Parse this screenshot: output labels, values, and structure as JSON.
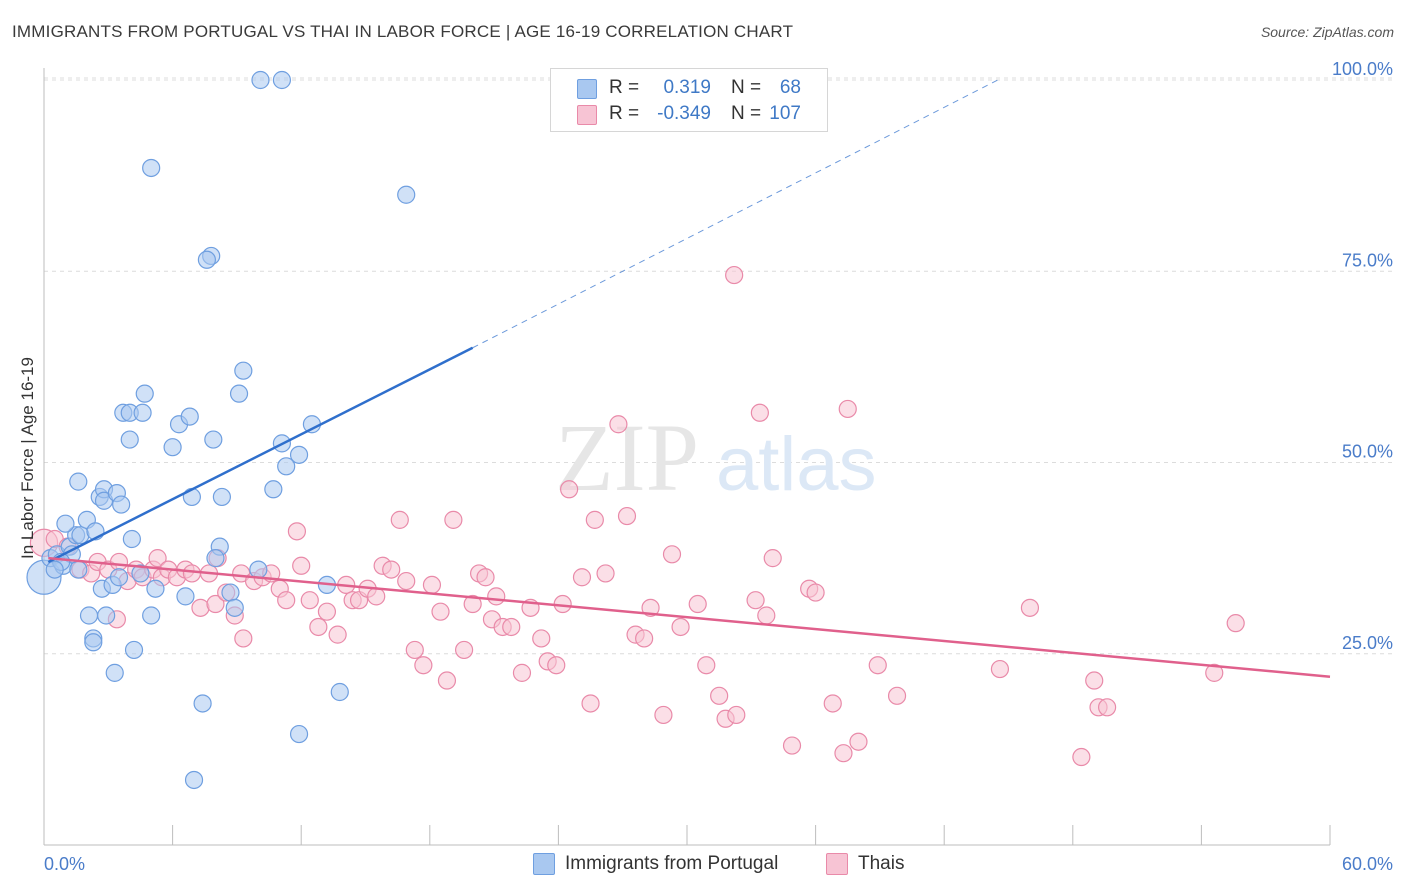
{
  "title": "IMMIGRANTS FROM PORTUGAL VS THAI IN LABOR FORCE | AGE 16-19 CORRELATION CHART",
  "source": "Source: ZipAtlas.com",
  "watermark": {
    "zip": "ZIP",
    "atlas": "atlas"
  },
  "legend_stats": {
    "r_label": "R =",
    "n_label": "N =",
    "rows": [
      {
        "r": "0.319",
        "n": "68",
        "color": "#a9c8f0",
        "border": "#6f9fe0"
      },
      {
        "r": "-0.349",
        "n": "107",
        "color": "#f7c4d4",
        "border": "#e98aa9"
      }
    ]
  },
  "bottom_legend": [
    {
      "label": "Immigrants from Portugal",
      "color": "#a9c8f0",
      "border": "#6f9fe0"
    },
    {
      "label": "Thais",
      "color": "#f7c4d4",
      "border": "#e98aa9"
    }
  ],
  "chart_data": {
    "type": "scatter",
    "title": "IMMIGRANTS FROM PORTUGAL VS THAI IN LABOR FORCE | AGE 16-19 CORRELATION CHART",
    "xlabel": "",
    "ylabel": "In Labor Force | Age 16-19",
    "xlim": [
      0,
      60
    ],
    "ylim": [
      0,
      103
    ],
    "x_tick_labels": [
      "0.0%",
      "60.0%"
    ],
    "y_ticks": [
      25,
      50,
      75,
      100
    ],
    "y_tick_labels": [
      "25.0%",
      "50.0%",
      "75.0%",
      "100.0%"
    ],
    "grid": true,
    "legend_placement": "bottom-center",
    "series": [
      {
        "name": "Immigrants from Portugal",
        "color": "#a9c8f0",
        "stroke": "#6f9fe0",
        "trend": {
          "x": [
            0.2,
            20
          ],
          "y": [
            37.0,
            65.0
          ],
          "dashed_to": [
            44.5,
            100
          ],
          "color": "#2f6fcc"
        },
        "points": [
          [
            0.0,
            35.0,
            20
          ],
          [
            0.3,
            37.5,
            10
          ],
          [
            0.6,
            38.0,
            10
          ],
          [
            0.9,
            36.5,
            10
          ],
          [
            1.2,
            39.0,
            10
          ],
          [
            1.5,
            40.5,
            10
          ],
          [
            1.0,
            42.0,
            10
          ],
          [
            1.6,
            36.0,
            10
          ],
          [
            1.7,
            40.5,
            10
          ],
          [
            2.0,
            42.5,
            10
          ],
          [
            1.6,
            47.5,
            10
          ],
          [
            2.6,
            45.5,
            10
          ],
          [
            2.8,
            46.5,
            10
          ],
          [
            2.8,
            45.0,
            10
          ],
          [
            3.4,
            46.0,
            10
          ],
          [
            3.6,
            44.5,
            10
          ],
          [
            2.7,
            33.5,
            10
          ],
          [
            2.1,
            30.0,
            10
          ],
          [
            2.3,
            27.0,
            10
          ],
          [
            2.3,
            26.5,
            10
          ],
          [
            2.9,
            30.0,
            10
          ],
          [
            3.2,
            34.0,
            10
          ],
          [
            3.5,
            35.0,
            10
          ],
          [
            3.3,
            22.5,
            10
          ],
          [
            4.2,
            25.5,
            10
          ],
          [
            4.1,
            40.0,
            10
          ],
          [
            4.5,
            35.5,
            10
          ],
          [
            5.2,
            33.5,
            10
          ],
          [
            5.0,
            30.0,
            10
          ],
          [
            3.7,
            56.5,
            10
          ],
          [
            4.0,
            56.5,
            10
          ],
          [
            4.6,
            56.5,
            10
          ],
          [
            4.7,
            59.0,
            10
          ],
          [
            4.0,
            53.0,
            10
          ],
          [
            5.0,
            88.5,
            10
          ],
          [
            6.3,
            55.0,
            10
          ],
          [
            6.0,
            52.0,
            10
          ],
          [
            6.8,
            56.0,
            10
          ],
          [
            6.9,
            45.5,
            10
          ],
          [
            7.8,
            77.0,
            10
          ],
          [
            7.6,
            76.5,
            10
          ],
          [
            7.9,
            53.0,
            10
          ],
          [
            8.3,
            45.5,
            10
          ],
          [
            8.2,
            39.0,
            10
          ],
          [
            8.0,
            37.5,
            10
          ],
          [
            8.7,
            33.0,
            10
          ],
          [
            8.9,
            31.0,
            10
          ],
          [
            9.1,
            59.0,
            10
          ],
          [
            9.3,
            62.0,
            10
          ],
          [
            10.0,
            36.0,
            10
          ],
          [
            10.1,
            100.0,
            10
          ],
          [
            11.1,
            100.0,
            10
          ],
          [
            10.7,
            46.5,
            10
          ],
          [
            11.1,
            52.5,
            10
          ],
          [
            11.3,
            49.5,
            10
          ],
          [
            11.9,
            51.0,
            10
          ],
          [
            12.5,
            55.0,
            10
          ],
          [
            13.2,
            34.0,
            10
          ],
          [
            13.8,
            20.0,
            10
          ],
          [
            11.9,
            14.5,
            10
          ],
          [
            7.4,
            18.5,
            10
          ],
          [
            7.0,
            8.5,
            10
          ],
          [
            16.9,
            85.0,
            10
          ],
          [
            6.6,
            32.5,
            10
          ],
          [
            1.3,
            38.0,
            10
          ],
          [
            0.8,
            37.0,
            10
          ],
          [
            0.5,
            36.0,
            10
          ],
          [
            2.4,
            41.0,
            10
          ]
        ]
      },
      {
        "name": "Thais",
        "color": "#f7c4d4",
        "stroke": "#e98aa9",
        "trend": {
          "x": [
            0.2,
            60
          ],
          "y": [
            37.5,
            22.0
          ],
          "color": "#e0608c"
        },
        "points": [
          [
            0.0,
            39.5,
            16
          ],
          [
            0.5,
            40.0,
            10
          ],
          [
            1.1,
            39.0,
            10
          ],
          [
            1.7,
            36.0,
            10
          ],
          [
            2.2,
            35.5,
            10
          ],
          [
            2.5,
            37.0,
            10
          ],
          [
            3.0,
            36.0,
            10
          ],
          [
            3.4,
            29.5,
            10
          ],
          [
            3.5,
            37.0,
            10
          ],
          [
            3.9,
            34.5,
            10
          ],
          [
            4.3,
            36.0,
            10
          ],
          [
            4.6,
            35.0,
            10
          ],
          [
            5.1,
            36.0,
            10
          ],
          [
            5.3,
            37.5,
            10
          ],
          [
            5.5,
            35.0,
            10
          ],
          [
            5.8,
            36.0,
            10
          ],
          [
            6.2,
            35.0,
            10
          ],
          [
            6.6,
            36.0,
            10
          ],
          [
            6.9,
            35.5,
            10
          ],
          [
            7.3,
            31.0,
            10
          ],
          [
            7.7,
            35.5,
            10
          ],
          [
            8.0,
            31.5,
            10
          ],
          [
            8.1,
            37.5,
            10
          ],
          [
            8.5,
            33.0,
            10
          ],
          [
            8.9,
            30.0,
            10
          ],
          [
            9.2,
            35.5,
            10
          ],
          [
            9.3,
            27.0,
            10
          ],
          [
            9.8,
            34.5,
            10
          ],
          [
            10.2,
            35.0,
            10
          ],
          [
            10.6,
            35.5,
            10
          ],
          [
            11.0,
            33.5,
            10
          ],
          [
            11.3,
            32.0,
            10
          ],
          [
            11.8,
            41.0,
            10
          ],
          [
            12.0,
            36.5,
            10
          ],
          [
            12.4,
            32.0,
            10
          ],
          [
            12.8,
            28.5,
            10
          ],
          [
            13.2,
            30.5,
            10
          ],
          [
            13.7,
            27.5,
            10
          ],
          [
            14.1,
            34.0,
            10
          ],
          [
            14.4,
            32.0,
            10
          ],
          [
            14.7,
            32.0,
            10
          ],
          [
            15.1,
            33.5,
            10
          ],
          [
            15.5,
            32.5,
            10
          ],
          [
            15.8,
            36.5,
            10
          ],
          [
            16.2,
            36.0,
            10
          ],
          [
            16.6,
            42.5,
            10
          ],
          [
            16.9,
            34.5,
            10
          ],
          [
            17.3,
            25.5,
            10
          ],
          [
            17.7,
            23.5,
            10
          ],
          [
            18.1,
            34.0,
            10
          ],
          [
            18.5,
            30.5,
            10
          ],
          [
            18.8,
            21.5,
            10
          ],
          [
            19.1,
            42.5,
            10
          ],
          [
            19.6,
            25.5,
            10
          ],
          [
            20.0,
            31.5,
            10
          ],
          [
            20.3,
            35.5,
            10
          ],
          [
            20.6,
            35.0,
            10
          ],
          [
            20.9,
            29.5,
            10
          ],
          [
            21.1,
            32.5,
            10
          ],
          [
            21.4,
            28.5,
            10
          ],
          [
            21.8,
            28.5,
            10
          ],
          [
            22.3,
            22.5,
            10
          ],
          [
            22.7,
            31.0,
            10
          ],
          [
            23.2,
            27.0,
            10
          ],
          [
            23.5,
            24.0,
            10
          ],
          [
            23.9,
            23.5,
            10
          ],
          [
            24.2,
            31.5,
            10
          ],
          [
            24.5,
            46.5,
            10
          ],
          [
            25.1,
            35.0,
            10
          ],
          [
            25.5,
            18.5,
            10
          ],
          [
            25.7,
            42.5,
            10
          ],
          [
            26.2,
            35.5,
            10
          ],
          [
            26.8,
            55.0,
            10
          ],
          [
            27.2,
            43.0,
            10
          ],
          [
            27.6,
            27.5,
            10
          ],
          [
            28.0,
            27.0,
            10
          ],
          [
            28.3,
            31.0,
            10
          ],
          [
            28.9,
            17.0,
            10
          ],
          [
            29.3,
            38.0,
            10
          ],
          [
            29.7,
            28.5,
            10
          ],
          [
            30.5,
            31.5,
            10
          ],
          [
            30.9,
            23.5,
            10
          ],
          [
            31.5,
            19.5,
            10
          ],
          [
            31.8,
            16.5,
            10
          ],
          [
            32.3,
            17.0,
            10
          ],
          [
            33.2,
            32.0,
            10
          ],
          [
            34.0,
            37.5,
            10
          ],
          [
            32.2,
            74.5,
            10
          ],
          [
            33.4,
            56.5,
            10
          ],
          [
            33.7,
            30.0,
            10
          ],
          [
            34.9,
            13.0,
            10
          ],
          [
            35.7,
            33.5,
            10
          ],
          [
            36.8,
            18.5,
            10
          ],
          [
            37.3,
            12.0,
            10
          ],
          [
            37.5,
            57.0,
            10
          ],
          [
            38.0,
            13.5,
            10
          ],
          [
            38.9,
            23.5,
            10
          ],
          [
            39.8,
            19.5,
            10
          ],
          [
            44.6,
            23.0,
            10
          ],
          [
            46.0,
            31.0,
            10
          ],
          [
            48.4,
            11.5,
            10
          ],
          [
            49.2,
            18.0,
            10
          ],
          [
            49.6,
            18.0,
            10
          ],
          [
            54.6,
            22.5,
            10
          ],
          [
            55.6,
            29.0,
            10
          ],
          [
            36.0,
            33.0,
            10
          ],
          [
            49.0,
            21.5,
            10
          ]
        ]
      }
    ]
  }
}
